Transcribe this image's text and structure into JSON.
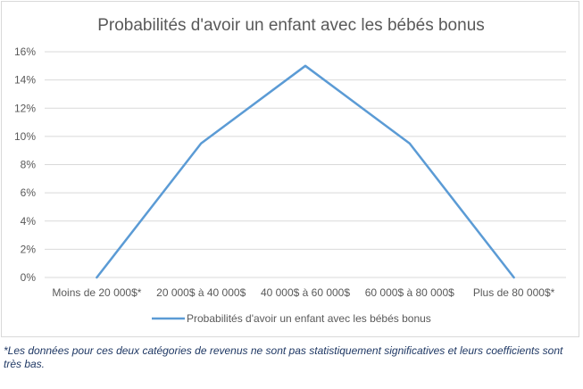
{
  "chart_data": {
    "type": "line",
    "title": "Probabilités d'avoir un enfant avec les bébés bonus",
    "categories": [
      "Moins de 20 000$*",
      "20 000$ à 40 000$",
      "40 000$ à 60 000$",
      "60 000$ à 80 000$",
      "Plus de 80 000$*"
    ],
    "series": [
      {
        "name": "Probabilités d'avoir un enfant avec les bébés bonus",
        "values": [
          0,
          9.5,
          15,
          9.5,
          0
        ],
        "color": "#5b9bd5"
      }
    ],
    "ylim": [
      0,
      16
    ],
    "yticks": [
      "0%",
      "2%",
      "4%",
      "6%",
      "8%",
      "10%",
      "12%",
      "14%",
      "16%"
    ],
    "grid": true,
    "legend": "bottom"
  },
  "footnote": "*Les données pour ces deux catégories de revenus ne sont pas statistiquement significatives et leurs coefficients sont très bas."
}
